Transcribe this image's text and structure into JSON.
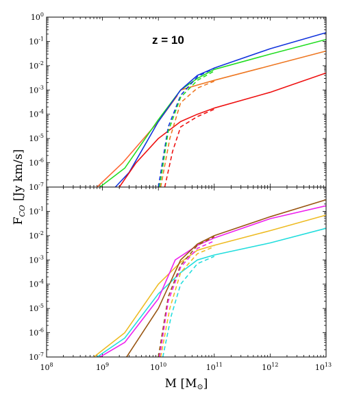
{
  "chart_data": {
    "type": "line",
    "xlabel": "M [M⊙]",
    "ylabel": "F_CO [Jy km/s]",
    "x_scale": "log",
    "y_scale": "log",
    "xlim": [
      100000000.0,
      10000000000000.0
    ],
    "x_ticks": [
      {
        "base": "10",
        "exp": "8",
        "value": 100000000.0
      },
      {
        "base": "10",
        "exp": "9",
        "value": 1000000000.0
      },
      {
        "base": "10",
        "exp": "10",
        "value": 10000000000.0
      },
      {
        "base": "10",
        "exp": "11",
        "value": 100000000000.0
      },
      {
        "base": "10",
        "exp": "12",
        "value": 1000000000000.0
      },
      {
        "base": "10",
        "exp": "13",
        "value": 10000000000000.0
      }
    ],
    "panels": [
      {
        "name": "top",
        "annotation": "z = 10",
        "ylim": [
          1e-07,
          1
        ],
        "y_ticks": [
          {
            "base": "10",
            "exp": "0",
            "value": 1
          },
          {
            "base": "10",
            "exp": "-1",
            "value": 0.1
          },
          {
            "base": "10",
            "exp": "-2",
            "value": 0.01
          },
          {
            "base": "10",
            "exp": "-3",
            "value": 0.001
          },
          {
            "base": "10",
            "exp": "-4",
            "value": 0.0001
          },
          {
            "base": "10",
            "exp": "-5",
            "value": 1e-05
          },
          {
            "base": "10",
            "exp": "-6",
            "value": 1e-06
          },
          {
            "base": "10",
            "exp": "-7",
            "value": 1e-07
          }
        ],
        "series": [
          {
            "color": "#ff6633",
            "style": "solid",
            "x": [
              800000000.0,
              2300000000.0,
              10000000000.0,
              22000000000.0
            ],
            "y": [
              1e-07,
              1e-06,
              5e-05,
              0.0006
            ]
          },
          {
            "color": "#22dd22",
            "style": "solid",
            "x": [
              900000000.0,
              2500000000.0,
              10000000000.0,
              25000000000.0,
              50000000000.0,
              100000000000.0,
              1000000000000.0,
              10000000000000.0
            ],
            "y": [
              1e-07,
              6e-07,
              6e-05,
              0.001,
              0.003,
              0.007,
              0.03,
              0.12
            ]
          },
          {
            "color": "#ee7722",
            "style": "solid",
            "x": [
              25000000000.0,
              50000000000.0,
              100000000000.0,
              1000000000000.0,
              10000000000000.0
            ],
            "y": [
              0.001,
              0.0016,
              0.0025,
              0.01,
              0.04
            ]
          },
          {
            "color": "#1133dd",
            "style": "solid",
            "x": [
              1700000000.0,
              3000000000.0,
              10000000000.0,
              25000000000.0,
              50000000000.0,
              100000000000.0,
              1000000000000.0,
              10000000000000.0
            ],
            "y": [
              1e-07,
              4e-07,
              5e-05,
              0.001,
              0.004,
              0.008,
              0.05,
              0.23
            ]
          },
          {
            "color": "#ee1111",
            "style": "solid",
            "x": [
              2000000000.0,
              4000000000.0,
              10000000000.0,
              25000000000.0,
              50000000000.0,
              100000000000.0,
              1000000000000.0,
              10000000000000.0
            ],
            "y": [
              1e-07,
              1e-06,
              1e-05,
              5e-05,
              0.0001,
              0.00018,
              0.0008,
              0.005
            ]
          },
          {
            "color": "#1133dd",
            "style": "dashed",
            "x": [
              10000000000.0,
              15000000000.0,
              25000000000.0,
              50000000000.0,
              100000000000.0
            ],
            "y": [
              1e-07,
              3e-05,
              0.0006,
              0.0035,
              0.008
            ]
          },
          {
            "color": "#22dd22",
            "style": "dashed",
            "x": [
              10500000000.0,
              15000000000.0,
              25000000000.0,
              50000000000.0,
              100000000000.0
            ],
            "y": [
              1e-07,
              2e-05,
              0.0005,
              0.0025,
              0.006
            ]
          },
          {
            "color": "#ee7722",
            "style": "dashed",
            "x": [
              11000000000.0,
              16000000000.0,
              25000000000.0,
              50000000000.0,
              100000000000.0
            ],
            "y": [
              1e-07,
              1e-05,
              0.0003,
              0.0012,
              0.0023
            ]
          },
          {
            "color": "#ee1111",
            "style": "dashed",
            "x": [
              13000000000.0,
              18000000000.0,
              25000000000.0,
              50000000000.0,
              100000000000.0
            ],
            "y": [
              1e-07,
              3e-06,
              3e-05,
              8e-05,
              0.00016
            ]
          }
        ]
      },
      {
        "name": "bottom",
        "ylim": [
          1e-07,
          1
        ],
        "y_ticks": [
          {
            "base": "10",
            "exp": "-1",
            "value": 0.1
          },
          {
            "base": "10",
            "exp": "-2",
            "value": 0.01
          },
          {
            "base": "10",
            "exp": "-3",
            "value": 0.001
          },
          {
            "base": "10",
            "exp": "-4",
            "value": 0.0001
          },
          {
            "base": "10",
            "exp": "-5",
            "value": 1e-05
          },
          {
            "base": "10",
            "exp": "-6",
            "value": 1e-06
          },
          {
            "base": "10",
            "exp": "-7",
            "value": 1e-07
          }
        ],
        "series": [
          {
            "color": "#eebb22",
            "style": "solid",
            "x": [
              700000000.0,
              2500000000.0,
              10000000000.0,
              25000000000.0,
              50000000000.0,
              100000000000.0,
              1000000000000.0,
              10000000000000.0
            ],
            "y": [
              1e-07,
              1e-06,
              0.0001,
              0.0008,
              0.0025,
              0.004,
              0.016,
              0.07
            ]
          },
          {
            "color": "#22dddd",
            "style": "solid",
            "x": [
              800000000.0,
              2500000000.0,
              10000000000.0,
              25000000000.0,
              50000000000.0,
              100000000000.0,
              1000000000000.0,
              10000000000000.0
            ],
            "y": [
              1e-07,
              6e-07,
              4e-05,
              0.0003,
              0.001,
              0.0016,
              0.005,
              0.02
            ]
          },
          {
            "color": "#ee22ee",
            "style": "solid",
            "x": [
              900000000.0,
              2500000000.0,
              10000000000.0,
              20000000000.0,
              50000000000.0,
              100000000000.0,
              1000000000000.0,
              10000000000000.0
            ],
            "y": [
              1e-07,
              4e-07,
              2.5e-05,
              0.001,
              0.004,
              0.008,
              0.05,
              0.17
            ]
          },
          {
            "color": "#995511",
            "style": "solid",
            "x": [
              2700000000.0,
              10000000000.0,
              25000000000.0,
              50000000000.0,
              100000000000.0,
              1000000000000.0,
              10000000000000.0
            ],
            "y": [
              1e-07,
              1e-05,
              0.001,
              0.0045,
              0.01,
              0.06,
              0.3
            ]
          },
          {
            "color": "#995511",
            "style": "dashed",
            "x": [
              10000000000.0,
              15000000000.0,
              25000000000.0,
              50000000000.0,
              100000000000.0
            ],
            "y": [
              1e-07,
              3e-05,
              0.0006,
              0.004,
              0.009
            ]
          },
          {
            "color": "#ee22ee",
            "style": "dashed",
            "x": [
              10500000000.0,
              15000000000.0,
              25000000000.0,
              50000000000.0,
              100000000000.0
            ],
            "y": [
              1e-07,
              2e-05,
              0.0005,
              0.003,
              0.006
            ]
          },
          {
            "color": "#eebb22",
            "style": "dashed",
            "x": [
              11000000000.0,
              16000000000.0,
              25000000000.0,
              50000000000.0,
              100000000000.0
            ],
            "y": [
              1e-07,
              1e-05,
              0.0003,
              0.0018,
              0.0035
            ]
          },
          {
            "color": "#22dddd",
            "style": "dashed",
            "x": [
              12000000000.0,
              17000000000.0,
              25000000000.0,
              50000000000.0,
              100000000000.0
            ],
            "y": [
              1e-07,
              5e-06,
              0.0001,
              0.0007,
              0.0014
            ]
          }
        ]
      }
    ]
  }
}
